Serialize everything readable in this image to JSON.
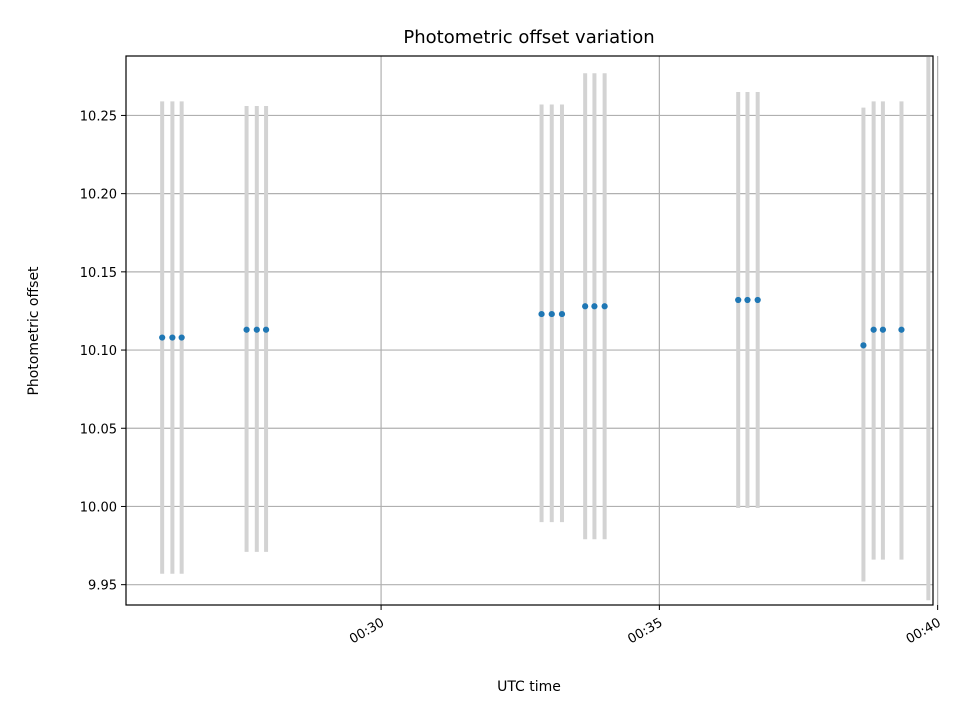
{
  "chart_data": {
    "type": "scatter",
    "title": "Photometric offset variation",
    "xlabel": "UTC time",
    "ylabel": "Photometric offset",
    "x_unit": "UTC HH:MM",
    "xlim": [
      "00:25:25",
      "00:39:55"
    ],
    "ylim": [
      9.937,
      10.288
    ],
    "grid": true,
    "x_ticks": [
      "00:30",
      "00:35",
      "00:40"
    ],
    "y_ticks": [
      9.95,
      10.0,
      10.05,
      10.1,
      10.15,
      10.2,
      10.25
    ],
    "y_tick_labels": [
      "9.95",
      "10.00",
      "10.05",
      "10.10",
      "10.15",
      "10.20",
      "10.25"
    ],
    "points": [
      {
        "t": "00:26:04",
        "y": 10.108,
        "ylo": 9.957,
        "yhi": 10.259
      },
      {
        "t": "00:26:15",
        "y": 10.108,
        "ylo": 9.957,
        "yhi": 10.259
      },
      {
        "t": "00:26:25",
        "y": 10.108,
        "ylo": 9.957,
        "yhi": 10.259
      },
      {
        "t": "00:27:35",
        "y": 10.113,
        "ylo": 9.971,
        "yhi": 10.256
      },
      {
        "t": "00:27:46",
        "y": 10.113,
        "ylo": 9.971,
        "yhi": 10.256
      },
      {
        "t": "00:27:56",
        "y": 10.113,
        "ylo": 9.971,
        "yhi": 10.256
      },
      {
        "t": "00:32:53",
        "y": 10.123,
        "ylo": 9.99,
        "yhi": 10.257
      },
      {
        "t": "00:33:04",
        "y": 10.123,
        "ylo": 9.99,
        "yhi": 10.257
      },
      {
        "t": "00:33:15",
        "y": 10.123,
        "ylo": 9.99,
        "yhi": 10.257
      },
      {
        "t": "00:33:40",
        "y": 10.128,
        "ylo": 9.979,
        "yhi": 10.277
      },
      {
        "t": "00:33:50",
        "y": 10.128,
        "ylo": 9.979,
        "yhi": 10.277
      },
      {
        "t": "00:34:01",
        "y": 10.128,
        "ylo": 9.979,
        "yhi": 10.277
      },
      {
        "t": "00:36:25",
        "y": 10.132,
        "ylo": 9.999,
        "yhi": 10.265
      },
      {
        "t": "00:36:35",
        "y": 10.132,
        "ylo": 9.999,
        "yhi": 10.265
      },
      {
        "t": "00:36:46",
        "y": 10.132,
        "ylo": 9.999,
        "yhi": 10.265
      },
      {
        "t": "00:38:40",
        "y": 10.103,
        "ylo": 9.952,
        "yhi": 10.255
      },
      {
        "t": "00:38:51",
        "y": 10.113,
        "ylo": 9.966,
        "yhi": 10.259
      },
      {
        "t": "00:39:01",
        "y": 10.113,
        "ylo": 9.966,
        "yhi": 10.259
      },
      {
        "t": "00:39:21",
        "y": 10.113,
        "ylo": 9.966,
        "yhi": 10.259
      },
      {
        "t": "00:39:50",
        "y": null,
        "ylo": 9.94,
        "yhi": 10.29
      }
    ],
    "colors": {
      "points": "#1f77b4",
      "errorbars": "#d3d3d3",
      "grid": "#b0b0b0"
    }
  }
}
